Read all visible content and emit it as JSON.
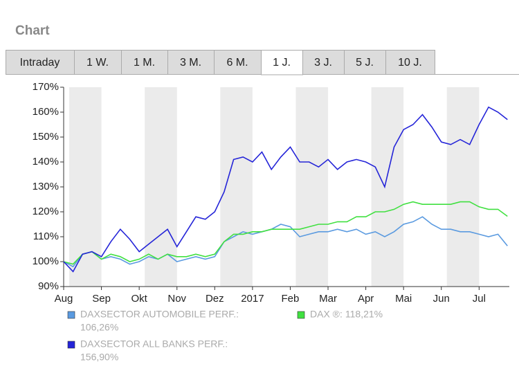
{
  "header": {
    "title": "Chart"
  },
  "tabs": [
    "Intraday",
    "1 W.",
    "1 M.",
    "3 M.",
    "6 M.",
    "1 J.",
    "3 J.",
    "5 J.",
    "10 J."
  ],
  "active_tab": 5,
  "chart_data": {
    "type": "line",
    "x": [
      0,
      0.25,
      0.5,
      0.75,
      1,
      1.25,
      1.5,
      1.75,
      2,
      2.25,
      2.5,
      2.75,
      3,
      3.25,
      3.5,
      3.75,
      4,
      4.25,
      4.5,
      4.75,
      5,
      5.25,
      5.5,
      5.75,
      6,
      6.25,
      6.5,
      6.75,
      7,
      7.25,
      7.5,
      7.75,
      8,
      8.25,
      8.5,
      8.75,
      9,
      9.25,
      9.5,
      9.75,
      10,
      10.25,
      10.5,
      10.75,
      11,
      11.25,
      11.5,
      11.75
    ],
    "xlim": [
      0,
      11.8
    ],
    "xticks": [
      {
        "value": 0,
        "label": "Aug"
      },
      {
        "value": 1,
        "label": "Sep"
      },
      {
        "value": 2,
        "label": "Okt"
      },
      {
        "value": 3,
        "label": "Nov"
      },
      {
        "value": 4,
        "label": "Dez"
      },
      {
        "value": 5,
        "label": "2017"
      },
      {
        "value": 6,
        "label": "Feb"
      },
      {
        "value": 7,
        "label": "Mar"
      },
      {
        "value": 8,
        "label": "Apr"
      },
      {
        "value": 9,
        "label": "Mai"
      },
      {
        "value": 10,
        "label": "Jun"
      },
      {
        "value": 11,
        "label": "Jul"
      }
    ],
    "ylim": [
      90,
      170
    ],
    "yticks": [
      {
        "value": 90,
        "label": "90%"
      },
      {
        "value": 100,
        "label": "100%"
      },
      {
        "value": 110,
        "label": "110%"
      },
      {
        "value": 120,
        "label": "120%"
      },
      {
        "value": 130,
        "label": "130%"
      },
      {
        "value": 140,
        "label": "140%"
      },
      {
        "value": 150,
        "label": "150%"
      },
      {
        "value": 160,
        "label": "160%"
      },
      {
        "value": 170,
        "label": "170%"
      }
    ],
    "series": [
      {
        "name": "DAXSECTOR AUTOMOBILE PERF.:",
        "legend_value": "106,26%",
        "color": "#5a9ae0",
        "values": [
          100,
          98,
          103,
          104,
          101,
          102,
          101,
          99,
          100,
          102,
          101,
          103,
          100,
          101,
          102,
          101,
          102,
          108,
          110,
          112,
          111,
          112,
          113,
          115,
          114,
          110,
          111,
          112,
          112,
          113,
          112,
          113,
          111,
          112,
          110,
          112,
          115,
          116,
          118,
          115,
          113,
          113,
          112,
          112,
          111,
          110,
          111,
          106.3
        ]
      },
      {
        "name": "DAX ®:",
        "legend_value": "118,21%",
        "color": "#40e040",
        "values": [
          100,
          99,
          103,
          104,
          101,
          103,
          102,
          100,
          101,
          103,
          101,
          103,
          102,
          102,
          103,
          102,
          103,
          108,
          111,
          111,
          112,
          112,
          113,
          113,
          113,
          113,
          114,
          115,
          115,
          116,
          116,
          118,
          118,
          120,
          120,
          121,
          123,
          124,
          123,
          123,
          123,
          123,
          124,
          124,
          122,
          121,
          121,
          118.2
        ]
      },
      {
        "name": "DAXSECTOR ALL BANKS PERF.:",
        "legend_value": "156,90%",
        "color": "#2424d8",
        "values": [
          100,
          96,
          103,
          104,
          102,
          108,
          113,
          109,
          104,
          107,
          110,
          113,
          106,
          112,
          118,
          117,
          120,
          128,
          141,
          142,
          140,
          144,
          137,
          142,
          146,
          140,
          140,
          138,
          141,
          137,
          140,
          141,
          140,
          138,
          130,
          146,
          153,
          155,
          159,
          154,
          148,
          147,
          149,
          147,
          155,
          162,
          160,
          157
        ]
      }
    ]
  }
}
